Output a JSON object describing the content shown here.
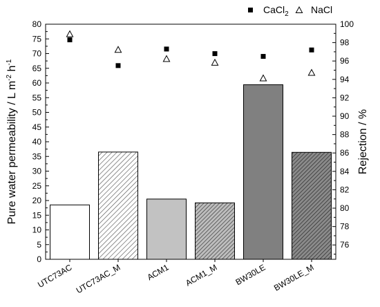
{
  "chart_data": {
    "type": "bar",
    "categories": [
      "UTC73AC",
      "UTC73AC_M",
      "ACM1",
      "ACM1_M",
      "BW30LE",
      "BW30LE_M"
    ],
    "bars": {
      "values": [
        18.5,
        36.5,
        20.5,
        19.2,
        59.4,
        36.4
      ],
      "fills": [
        "white",
        "hatch-light",
        "#c2c2c2",
        "hatch-gray",
        "#808080",
        "hatch-dark"
      ]
    },
    "series": [
      {
        "name": "CaCl",
        "name_sub": "2",
        "marker": "filled-square",
        "axis": "right",
        "values": [
          98.3,
          95.5,
          97.3,
          96.8,
          96.5,
          97.2
        ]
      },
      {
        "name": "NaCl",
        "marker": "open-triangle",
        "axis": "right",
        "values": [
          98.9,
          97.2,
          96.2,
          95.8,
          94.1,
          94.7
        ]
      }
    ],
    "ylabel_left": {
      "text": "Pure water permeability / L m",
      "sup1": "-2",
      "mid": " h",
      "sup2": "-1"
    },
    "ylabel_right": "Rejection / %",
    "ylim_left": [
      0,
      80
    ],
    "yticks_left": [
      0,
      5,
      10,
      15,
      20,
      25,
      30,
      35,
      40,
      45,
      50,
      55,
      60,
      65,
      70,
      75,
      80
    ],
    "ylim_right": [
      74.44,
      100
    ],
    "yticks_right": [
      76,
      78,
      80,
      82,
      84,
      86,
      88,
      90,
      92,
      94,
      96,
      98,
      100
    ],
    "legend_position": "top-right",
    "grid": false
  }
}
